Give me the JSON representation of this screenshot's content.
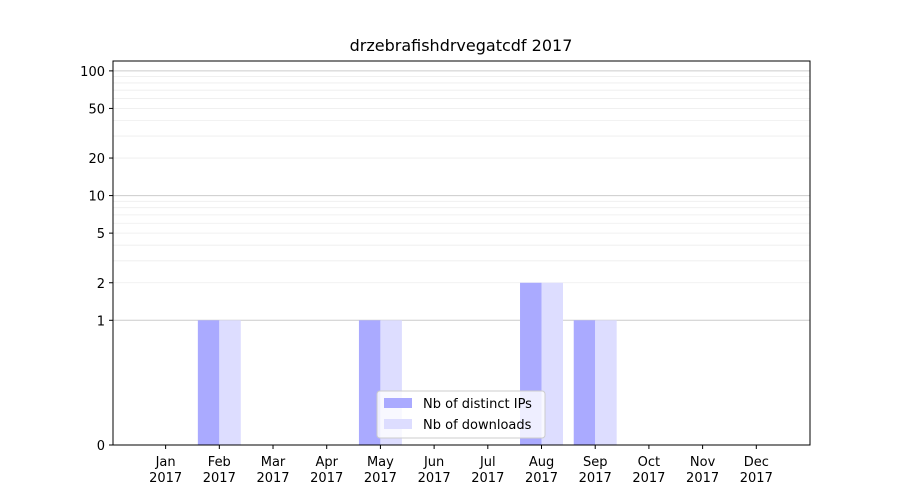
{
  "chart_data": {
    "type": "bar",
    "title": "drzebrafishdrvegatcdf 2017",
    "xlabel": "",
    "ylabel": "",
    "yscale": "symlog",
    "ylim": [
      0,
      120
    ],
    "y_ticks": [
      0,
      1,
      2,
      5,
      10,
      20,
      50,
      100
    ],
    "categories": [
      "Jan\n2017",
      "Feb\n2017",
      "Mar\n2017",
      "Apr\n2017",
      "May\n2017",
      "Jun\n2017",
      "Jul\n2017",
      "Aug\n2017",
      "Sep\n2017",
      "Oct\n2017",
      "Nov\n2017",
      "Dec\n2017"
    ],
    "series": [
      {
        "name": "Nb of distinct IPs",
        "color": "#aaaaff",
        "values": [
          0,
          1,
          0,
          0,
          1,
          0,
          0,
          2,
          1,
          0,
          0,
          0
        ]
      },
      {
        "name": "Nb of downloads",
        "color": "#ddddff",
        "values": [
          0,
          1,
          0,
          0,
          1,
          0,
          0,
          2,
          1,
          0,
          0,
          0
        ]
      }
    ],
    "grid": true,
    "legend_position": "lower-center"
  }
}
